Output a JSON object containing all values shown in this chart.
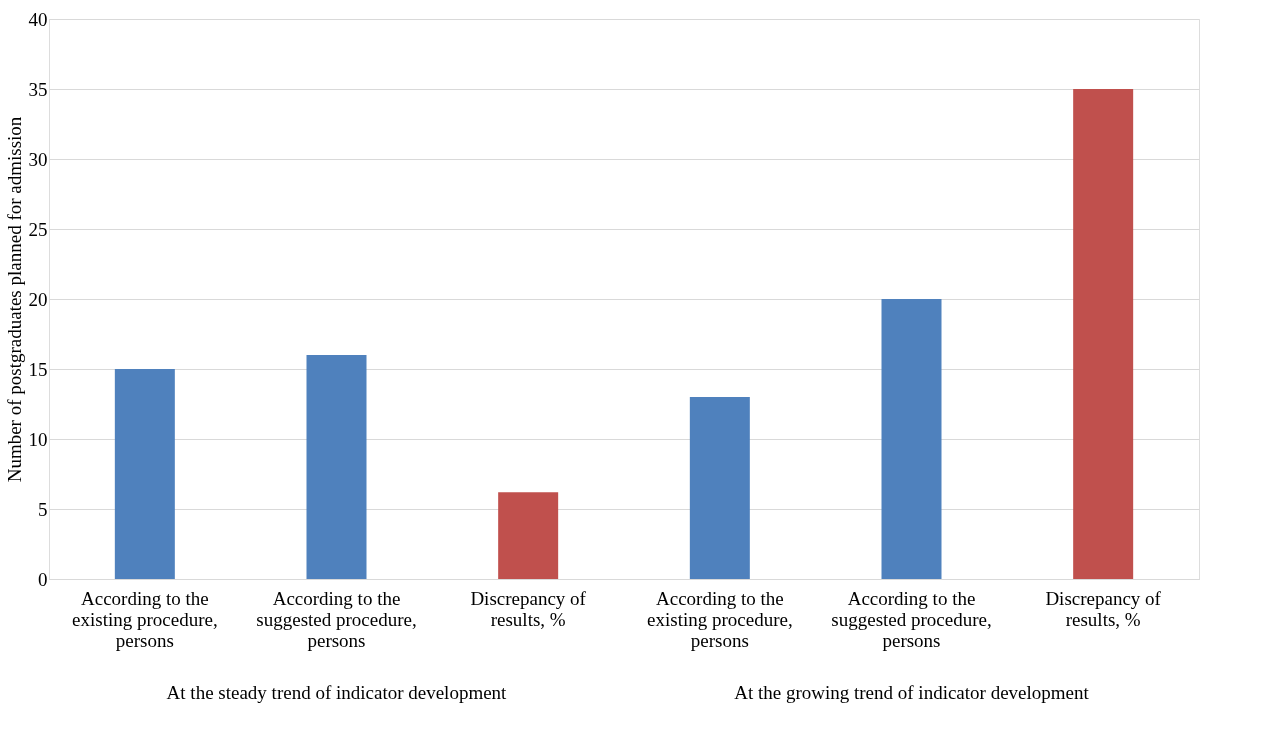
{
  "chart_data": {
    "type": "bar",
    "ylabel": "Number of postgraduates planned for admission",
    "categories": [
      "According to the existing procedure, persons",
      "According to the suggested procedure, persons",
      "Discrepancy of results, %",
      "According to the existing procedure, persons",
      "According to the suggested procedure, persons",
      "Discrepancy of results, %"
    ],
    "values": [
      15,
      16,
      6.2,
      13,
      20,
      35
    ],
    "colors": [
      "#4f81bd",
      "#4f81bd",
      "#c0504d",
      "#4f81bd",
      "#4f81bd",
      "#c0504d"
    ],
    "ylim": [
      0,
      40
    ],
    "yticks": [
      0,
      5,
      10,
      15,
      20,
      25,
      30,
      35,
      40
    ],
    "grid": "y",
    "annotations": [
      "At the steady trend of indicator development",
      "At the growing trend of indicator development"
    ]
  }
}
